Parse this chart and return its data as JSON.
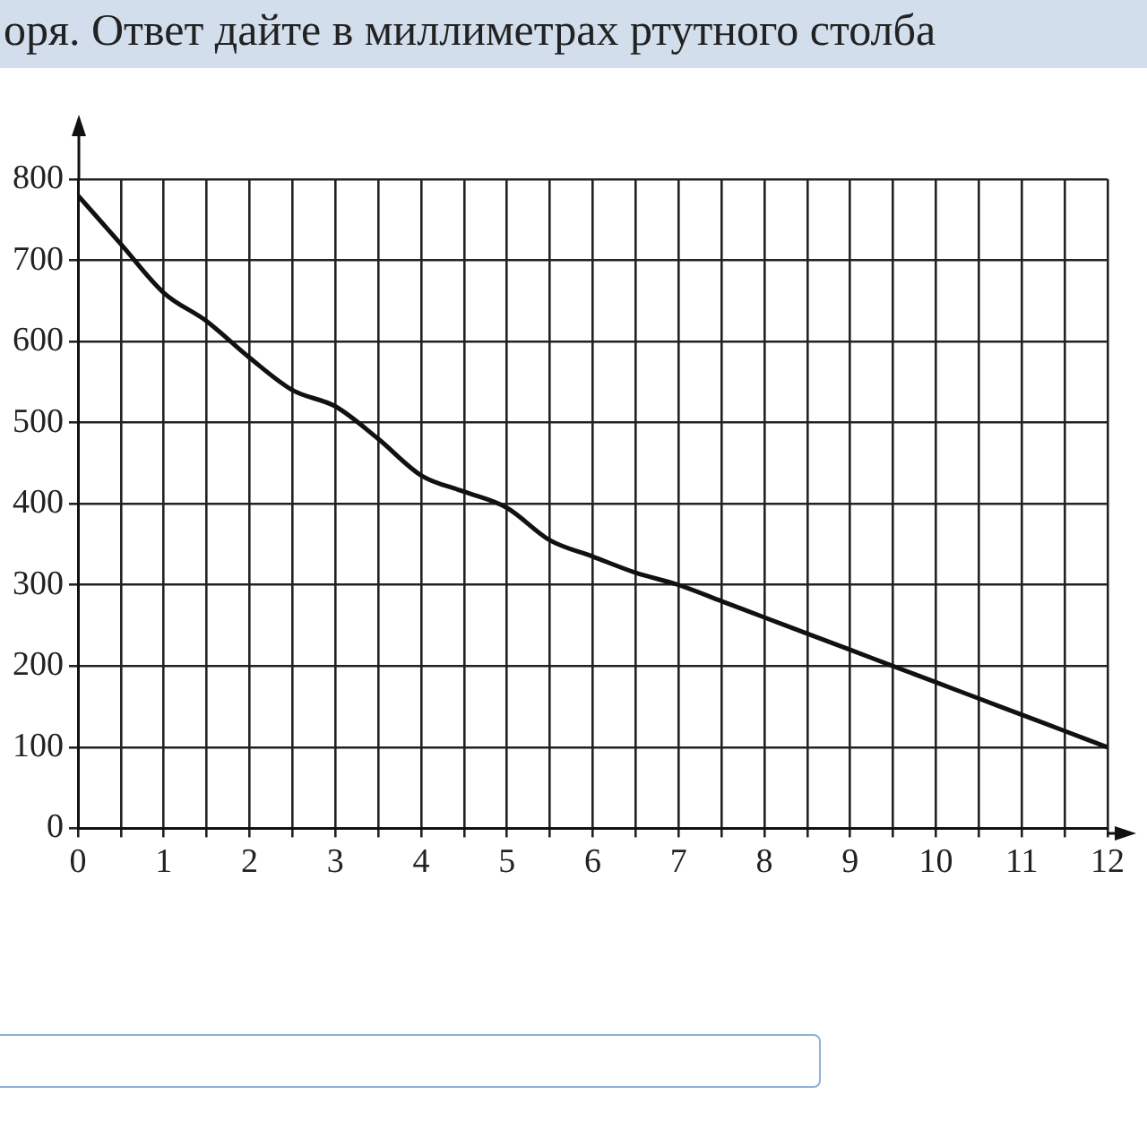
{
  "chart_data": {
    "type": "line",
    "title": "оря. Ответ дайте в миллиметрах ртутного столба",
    "x": [
      0,
      0.5,
      1,
      1.5,
      2,
      2.5,
      3,
      3.5,
      4,
      4.5,
      5,
      5.5,
      6,
      6.5,
      7,
      7.5,
      8,
      8.5,
      9,
      9.5,
      10,
      10.5,
      11,
      11.5,
      12
    ],
    "series": [
      {
        "color": "#111111",
        "values": [
          780,
          720,
          660,
          625,
          580,
          540,
          520,
          480,
          435,
          415,
          395,
          355,
          335,
          315,
          300,
          280,
          260,
          240,
          220,
          200,
          180,
          160,
          140,
          120,
          100
        ]
      }
    ],
    "xlim": [
      0,
      12
    ],
    "xticks": [
      0,
      1,
      2,
      3,
      4,
      5,
      6,
      7,
      8,
      9,
      10,
      11,
      12
    ],
    "ylim": [
      0,
      800
    ],
    "yticks": [
      0,
      100,
      200,
      300,
      400,
      500,
      600,
      700,
      800
    ],
    "grid": true,
    "legend": false,
    "marker": "none",
    "line_style": "solid"
  }
}
